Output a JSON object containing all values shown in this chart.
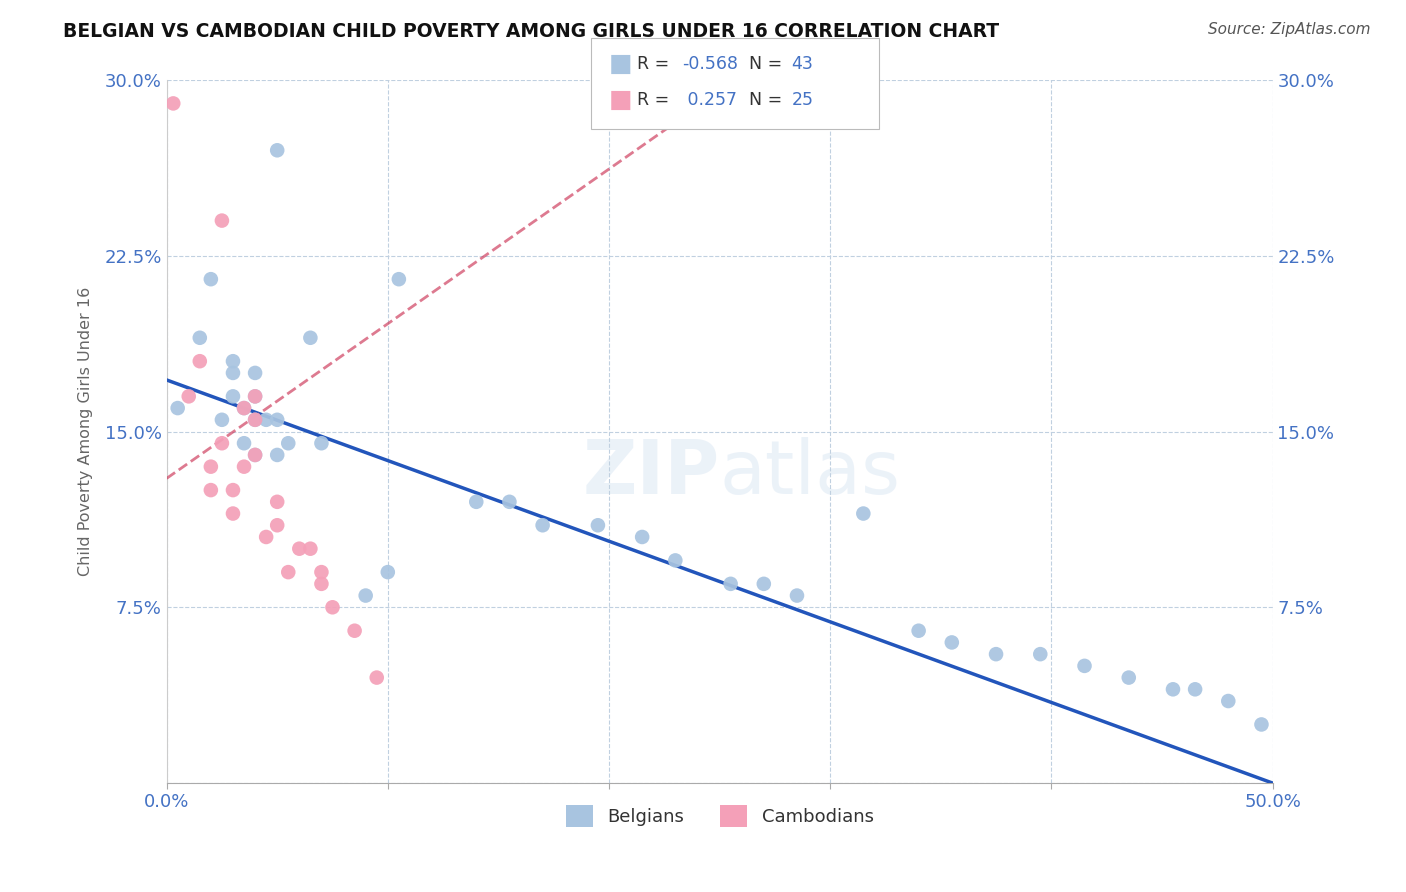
{
  "title": "BELGIAN VS CAMBODIAN CHILD POVERTY AMONG GIRLS UNDER 16 CORRELATION CHART",
  "source": "Source: ZipAtlas.com",
  "ylabel_label": "Child Poverty Among Girls Under 16",
  "xlim": [
    0.0,
    0.5
  ],
  "ylim": [
    0.0,
    0.3
  ],
  "belgian_R": -0.568,
  "belgian_N": 43,
  "cambodian_R": 0.257,
  "cambodian_N": 25,
  "belgian_color": "#a8c4e0",
  "cambodian_color": "#f4a0b8",
  "belgian_trend_color": "#2255bb",
  "cambodian_trend_color": "#cc3355",
  "belgians_x": [
    0.005,
    0.015,
    0.02,
    0.025,
    0.03,
    0.03,
    0.03,
    0.035,
    0.035,
    0.04,
    0.04,
    0.04,
    0.04,
    0.045,
    0.05,
    0.05,
    0.05,
    0.055,
    0.065,
    0.07,
    0.09,
    0.1,
    0.105,
    0.14,
    0.155,
    0.17,
    0.195,
    0.215,
    0.23,
    0.255,
    0.27,
    0.285,
    0.315,
    0.34,
    0.355,
    0.375,
    0.395,
    0.415,
    0.435,
    0.455,
    0.465,
    0.48,
    0.495
  ],
  "belgians_y": [
    0.16,
    0.19,
    0.215,
    0.155,
    0.165,
    0.175,
    0.18,
    0.145,
    0.16,
    0.14,
    0.155,
    0.165,
    0.175,
    0.155,
    0.14,
    0.155,
    0.27,
    0.145,
    0.19,
    0.145,
    0.08,
    0.09,
    0.215,
    0.12,
    0.12,
    0.11,
    0.11,
    0.105,
    0.095,
    0.085,
    0.085,
    0.08,
    0.115,
    0.065,
    0.06,
    0.055,
    0.055,
    0.05,
    0.045,
    0.04,
    0.04,
    0.035,
    0.025
  ],
  "cambodians_x": [
    0.003,
    0.01,
    0.015,
    0.02,
    0.02,
    0.025,
    0.025,
    0.03,
    0.03,
    0.035,
    0.035,
    0.04,
    0.04,
    0.04,
    0.045,
    0.05,
    0.05,
    0.055,
    0.06,
    0.065,
    0.07,
    0.07,
    0.075,
    0.085,
    0.095
  ],
  "cambodians_y": [
    0.29,
    0.165,
    0.18,
    0.125,
    0.135,
    0.145,
    0.24,
    0.115,
    0.125,
    0.135,
    0.16,
    0.14,
    0.155,
    0.165,
    0.105,
    0.11,
    0.12,
    0.09,
    0.1,
    0.1,
    0.085,
    0.09,
    0.075,
    0.065,
    0.045
  ],
  "blue_line_x0": 0.0,
  "blue_line_y0": 0.172,
  "blue_line_x1": 0.5,
  "blue_line_y1": 0.0,
  "pink_line_x0": 0.0,
  "pink_line_y0": 0.13,
  "pink_line_x1": 0.25,
  "pink_line_y1": 0.295
}
